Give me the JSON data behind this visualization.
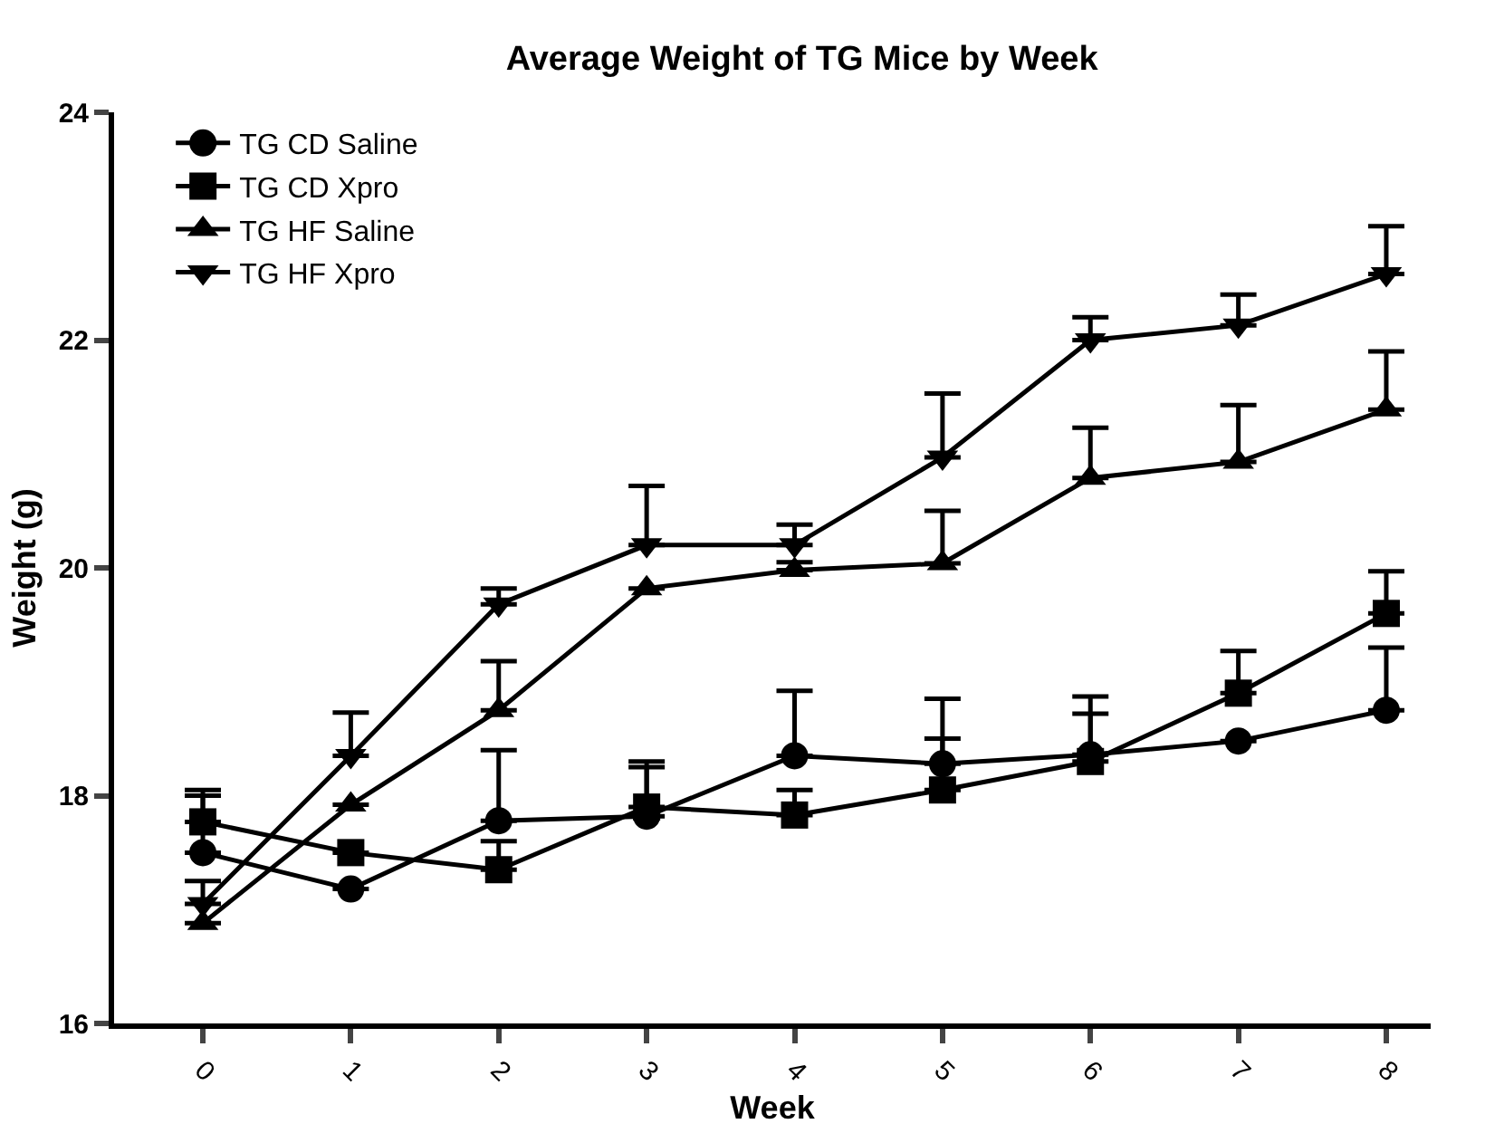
{
  "chart_data": {
    "type": "line",
    "title": "Average Weight of TG Mice by Week",
    "xlabel": "Week",
    "ylabel": "Weight (g)",
    "x": [
      0,
      1,
      2,
      3,
      4,
      5,
      6,
      7,
      8
    ],
    "xlim": [
      -0.6,
      8.3
    ],
    "xticks": [
      0,
      1,
      2,
      3,
      4,
      5,
      6,
      7,
      8
    ],
    "ylim": [
      16,
      24
    ],
    "yticks": [
      16,
      18,
      20,
      22,
      24
    ],
    "legend": "top left",
    "line_style": "solid",
    "series": [
      {
        "name": "TG CD Saline",
        "color": "#000000",
        "marker": "circle",
        "values": [
          17.5,
          17.18,
          17.78,
          17.82,
          18.35,
          18.28,
          18.36,
          18.48,
          18.75
        ],
        "errors": [
          [
            17.5,
            18.05
          ],
          null,
          [
            17.78,
            18.4
          ],
          [
            17.82,
            18.3
          ],
          [
            18.35,
            18.92
          ],
          [
            18.28,
            18.85
          ],
          [
            18.36,
            18.87
          ],
          null,
          [
            18.75,
            19.3
          ]
        ]
      },
      {
        "name": "TG CD Xpro",
        "color": "#000000",
        "marker": "square",
        "values": [
          17.77,
          17.5,
          17.35,
          17.9,
          17.83,
          18.05,
          18.3,
          18.9,
          19.6
        ],
        "errors": [
          [
            17.77,
            18.0
          ],
          null,
          [
            17.35,
            17.6
          ],
          [
            17.9,
            18.25
          ],
          [
            17.83,
            18.05
          ],
          [
            18.05,
            18.5
          ],
          [
            18.3,
            18.72
          ],
          [
            18.9,
            19.27
          ],
          [
            19.6,
            19.97
          ]
        ]
      },
      {
        "name": "TG HF Saline",
        "color": "#000000",
        "marker": "triangle",
        "values": [
          16.88,
          17.92,
          18.75,
          19.82,
          19.98,
          20.04,
          20.79,
          20.93,
          21.39
        ],
        "errors": [
          null,
          null,
          [
            18.75,
            19.18
          ],
          null,
          [
            19.98,
            20.05
          ],
          [
            20.04,
            20.5
          ],
          [
            20.79,
            21.23
          ],
          [
            20.93,
            21.43
          ],
          [
            21.39,
            21.9
          ]
        ]
      },
      {
        "name": "TG HF Xpro",
        "color": "#000000",
        "marker": "triangle-down",
        "values": [
          17.05,
          18.35,
          19.68,
          20.2,
          20.2,
          20.97,
          22.0,
          22.13,
          22.58
        ],
        "errors": [
          [
            17.05,
            17.25
          ],
          [
            18.35,
            18.73
          ],
          [
            19.68,
            19.82
          ],
          [
            20.2,
            20.72
          ],
          [
            20.2,
            20.38
          ],
          [
            20.97,
            21.53
          ],
          [
            22.0,
            22.2
          ],
          [
            22.13,
            22.4
          ],
          [
            22.58,
            23.0
          ]
        ]
      }
    ]
  }
}
